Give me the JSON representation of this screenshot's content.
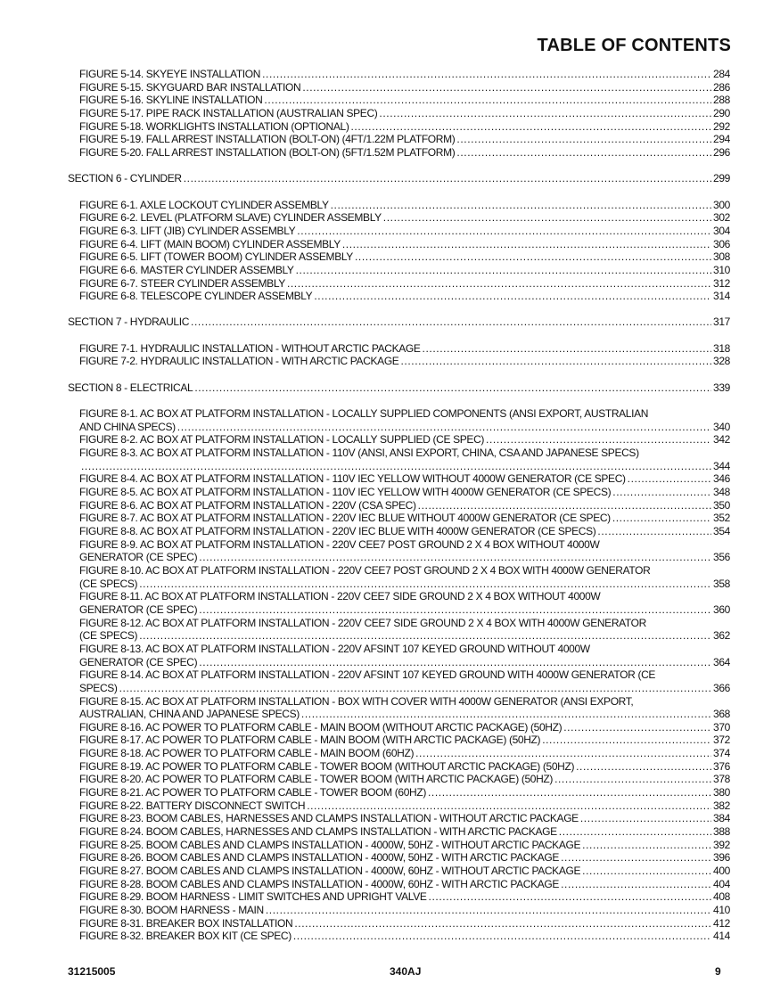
{
  "header": {
    "title": "TABLE OF CONTENTS"
  },
  "groups": [
    {
      "entries": [
        {
          "text": "FIGURE 5-14. SKYEYE INSTALLATION",
          "page": "284"
        },
        {
          "text": "FIGURE 5-15. SKYGUARD BAR INSTALLATION",
          "page": "286"
        },
        {
          "text": "FIGURE 5-16. SKYLINE INSTALLATION",
          "page": "288"
        },
        {
          "text": "FIGURE 5-17. PIPE RACK INSTALLATION (AUSTRALIAN SPEC)",
          "page": "290"
        },
        {
          "text": "FIGURE 5-18. WORKLIGHTS INSTALLATION (OPTIONAL)",
          "page": "292"
        },
        {
          "text": "FIGURE 5-19. FALL ARREST INSTALLATION (BOLT-ON) (4FT/1.22M PLATFORM)",
          "page": "294"
        },
        {
          "text": "FIGURE 5-20. FALL ARREST INSTALLATION (BOLT-ON) (5FT/1.52M PLATFORM)",
          "page": "296"
        }
      ]
    },
    {
      "section": {
        "text": "SECTION 6 - CYLINDER",
        "page": "299"
      },
      "entries": [
        {
          "text": "FIGURE 6-1. AXLE LOCKOUT CYLINDER ASSEMBLY",
          "page": "300"
        },
        {
          "text": "FIGURE 6-2. LEVEL (PLATFORM SLAVE) CYLINDER ASSEMBLY",
          "page": "302"
        },
        {
          "text": "FIGURE 6-3. LIFT (JIB) CYLINDER ASSEMBLY",
          "page": "304"
        },
        {
          "text": "FIGURE 6-4. LIFT (MAIN BOOM) CYLINDER ASSEMBLY",
          "page": "306"
        },
        {
          "text": "FIGURE 6-5. LIFT (TOWER BOOM) CYLINDER ASSEMBLY",
          "page": "308"
        },
        {
          "text": "FIGURE 6-6. MASTER CYLINDER ASSEMBLY",
          "page": "310"
        },
        {
          "text": "FIGURE 6-7. STEER CYLINDER ASSEMBLY",
          "page": "312"
        },
        {
          "text": "FIGURE 6-8. TELESCOPE CYLINDER ASSEMBLY",
          "page": "314"
        }
      ]
    },
    {
      "section": {
        "text": "SECTION 7 - HYDRAULIC",
        "page": "317"
      },
      "entries": [
        {
          "text": "FIGURE 7-1. HYDRAULIC INSTALLATION - WITHOUT ARCTIC PACKAGE",
          "page": "318"
        },
        {
          "text": "FIGURE 7-2. HYDRAULIC INSTALLATION - WITH ARCTIC PACKAGE",
          "page": "328"
        }
      ]
    },
    {
      "section": {
        "text": "SECTION 8 - ELECTRICAL",
        "page": "339"
      },
      "entries": [
        {
          "text": "FIGURE 8-1. AC BOX AT PLATFORM INSTALLATION - LOCALLY SUPPLIED COMPONENTS (ANSI EXPORT, AUSTRALIAN",
          "cont": "AND CHINA SPECS)",
          "page": "340"
        },
        {
          "text": "FIGURE 8-2. AC BOX AT PLATFORM INSTALLATION - LOCALLY SUPPLIED (CE SPEC)",
          "page": "342"
        },
        {
          "text": "FIGURE 8-3. AC BOX AT PLATFORM INSTALLATION - 110V (ANSI, ANSI EXPORT, CHINA, CSA AND JAPANESE SPECS)",
          "cont": "",
          "page": "344"
        },
        {
          "text": "FIGURE 8-4. AC BOX AT PLATFORM INSTALLATION - 110V IEC YELLOW WITHOUT 4000W GENERATOR (CE SPEC)",
          "page": "346"
        },
        {
          "text": "FIGURE 8-5. AC BOX AT PLATFORM INSTALLATION - 110V IEC YELLOW WITH 4000W GENERATOR (CE SPECS)",
          "page": "348"
        },
        {
          "text": "FIGURE 8-6. AC BOX AT PLATFORM INSTALLATION - 220V (CSA SPEC)",
          "page": "350"
        },
        {
          "text": "FIGURE 8-7. AC BOX AT PLATFORM INSTALLATION - 220V IEC BLUE WITHOUT 4000W GENERATOR (CE SPEC)",
          "page": "352"
        },
        {
          "text": "FIGURE 8-8. AC BOX AT PLATFORM INSTALLATION - 220V IEC BLUE WITH 4000W GENERATOR (CE SPECS)",
          "page": "354"
        },
        {
          "text": "FIGURE 8-9. AC BOX AT PLATFORM INSTALLATION - 220V CEE7 POST GROUND 2 X 4 BOX WITHOUT 4000W",
          "cont": "GENERATOR (CE SPEC)",
          "page": "356"
        },
        {
          "text": "FIGURE 8-10. AC BOX AT PLATFORM INSTALLATION - 220V CEE7 POST GROUND 2 X 4 BOX WITH 4000W GENERATOR",
          "cont": "(CE SPECS)",
          "page": "358"
        },
        {
          "text": "FIGURE 8-11. AC BOX AT PLATFORM INSTALLATION - 220V CEE7 SIDE GROUND 2 X 4 BOX WITHOUT 4000W",
          "cont": "GENERATOR (CE SPEC)",
          "page": "360"
        },
        {
          "text": "FIGURE 8-12. AC BOX AT PLATFORM INSTALLATION - 220V CEE7 SIDE GROUND 2 X 4 BOX WITH 4000W GENERATOR",
          "cont": "(CE SPECS)",
          "page": "362"
        },
        {
          "text": "FIGURE 8-13. AC BOX AT PLATFORM INSTALLATION - 220V AFSINT 107 KEYED GROUND WITHOUT 4000W",
          "cont": "GENERATOR (CE SPEC)",
          "page": "364"
        },
        {
          "text": "FIGURE 8-14. AC BOX AT PLATFORM INSTALLATION - 220V AFSINT 107 KEYED GROUND WITH 4000W GENERATOR (CE",
          "cont": "SPECS)",
          "page": "366"
        },
        {
          "text": "FIGURE 8-15. AC BOX AT PLATFORM INSTALLATION - BOX WITH COVER WITH 4000W GENERATOR (ANSI EXPORT,",
          "cont": "AUSTRALIAN, CHINA AND JAPANESE SPECS)",
          "page": "368"
        },
        {
          "text": "FIGURE 8-16. AC POWER TO PLATFORM CABLE - MAIN BOOM (WITHOUT ARCTIC PACKAGE) (50HZ)",
          "page": "370"
        },
        {
          "text": "FIGURE 8-17. AC POWER TO PLATFORM CABLE - MAIN BOOM (WITH ARCTIC PACKAGE) (50HZ)",
          "page": "372"
        },
        {
          "text": "FIGURE 8-18. AC POWER TO PLATFORM CABLE - MAIN BOOM (60HZ)",
          "page": "374"
        },
        {
          "text": "FIGURE 8-19. AC POWER TO PLATFORM CABLE - TOWER BOOM (WITHOUT ARCTIC PACKAGE) (50HZ)",
          "page": "376"
        },
        {
          "text": "FIGURE 8-20. AC POWER TO PLATFORM CABLE - TOWER BOOM (WITH ARCTIC PACKAGE) (50HZ)",
          "page": "378"
        },
        {
          "text": "FIGURE 8-21. AC POWER TO PLATFORM CABLE - TOWER BOOM (60HZ)",
          "page": "380"
        },
        {
          "text": "FIGURE 8-22. BATTERY DISCONNECT SWITCH",
          "page": "382"
        },
        {
          "text": "FIGURE 8-23. BOOM CABLES, HARNESSES AND CLAMPS INSTALLATION - WITHOUT ARCTIC PACKAGE",
          "page": "384"
        },
        {
          "text": "FIGURE 8-24. BOOM CABLES, HARNESSES AND CLAMPS INSTALLATION - WITH ARCTIC PACKAGE",
          "page": "388"
        },
        {
          "text": "FIGURE 8-25. BOOM CABLES AND CLAMPS INSTALLATION - 4000W, 50HZ - WITHOUT ARCTIC PACKAGE",
          "page": "392"
        },
        {
          "text": "FIGURE 8-26. BOOM CABLES AND CLAMPS INSTALLATION - 4000W, 50HZ - WITH ARCTIC PACKAGE",
          "page": "396"
        },
        {
          "text": "FIGURE 8-27. BOOM CABLES AND CLAMPS INSTALLATION - 4000W, 60HZ - WITHOUT ARCTIC PACKAGE",
          "page": "400"
        },
        {
          "text": "FIGURE 8-28. BOOM CABLES AND CLAMPS INSTALLATION - 4000W, 60HZ - WITH ARCTIC PACKAGE",
          "page": "404"
        },
        {
          "text": "FIGURE 8-29. BOOM HARNESS - LIMIT SWITCHES AND UPRIGHT VALVE",
          "page": "408"
        },
        {
          "text": "FIGURE 8-30. BOOM HARNESS - MAIN",
          "page": "410"
        },
        {
          "text": "FIGURE 8-31. BREAKER BOX INSTALLATION",
          "page": "412"
        },
        {
          "text": "FIGURE 8-32. BREAKER BOX KIT (CE SPEC)",
          "page": "414"
        }
      ]
    }
  ],
  "footer": {
    "doc_number": "31215005",
    "model": "340AJ",
    "page_number": "9"
  }
}
